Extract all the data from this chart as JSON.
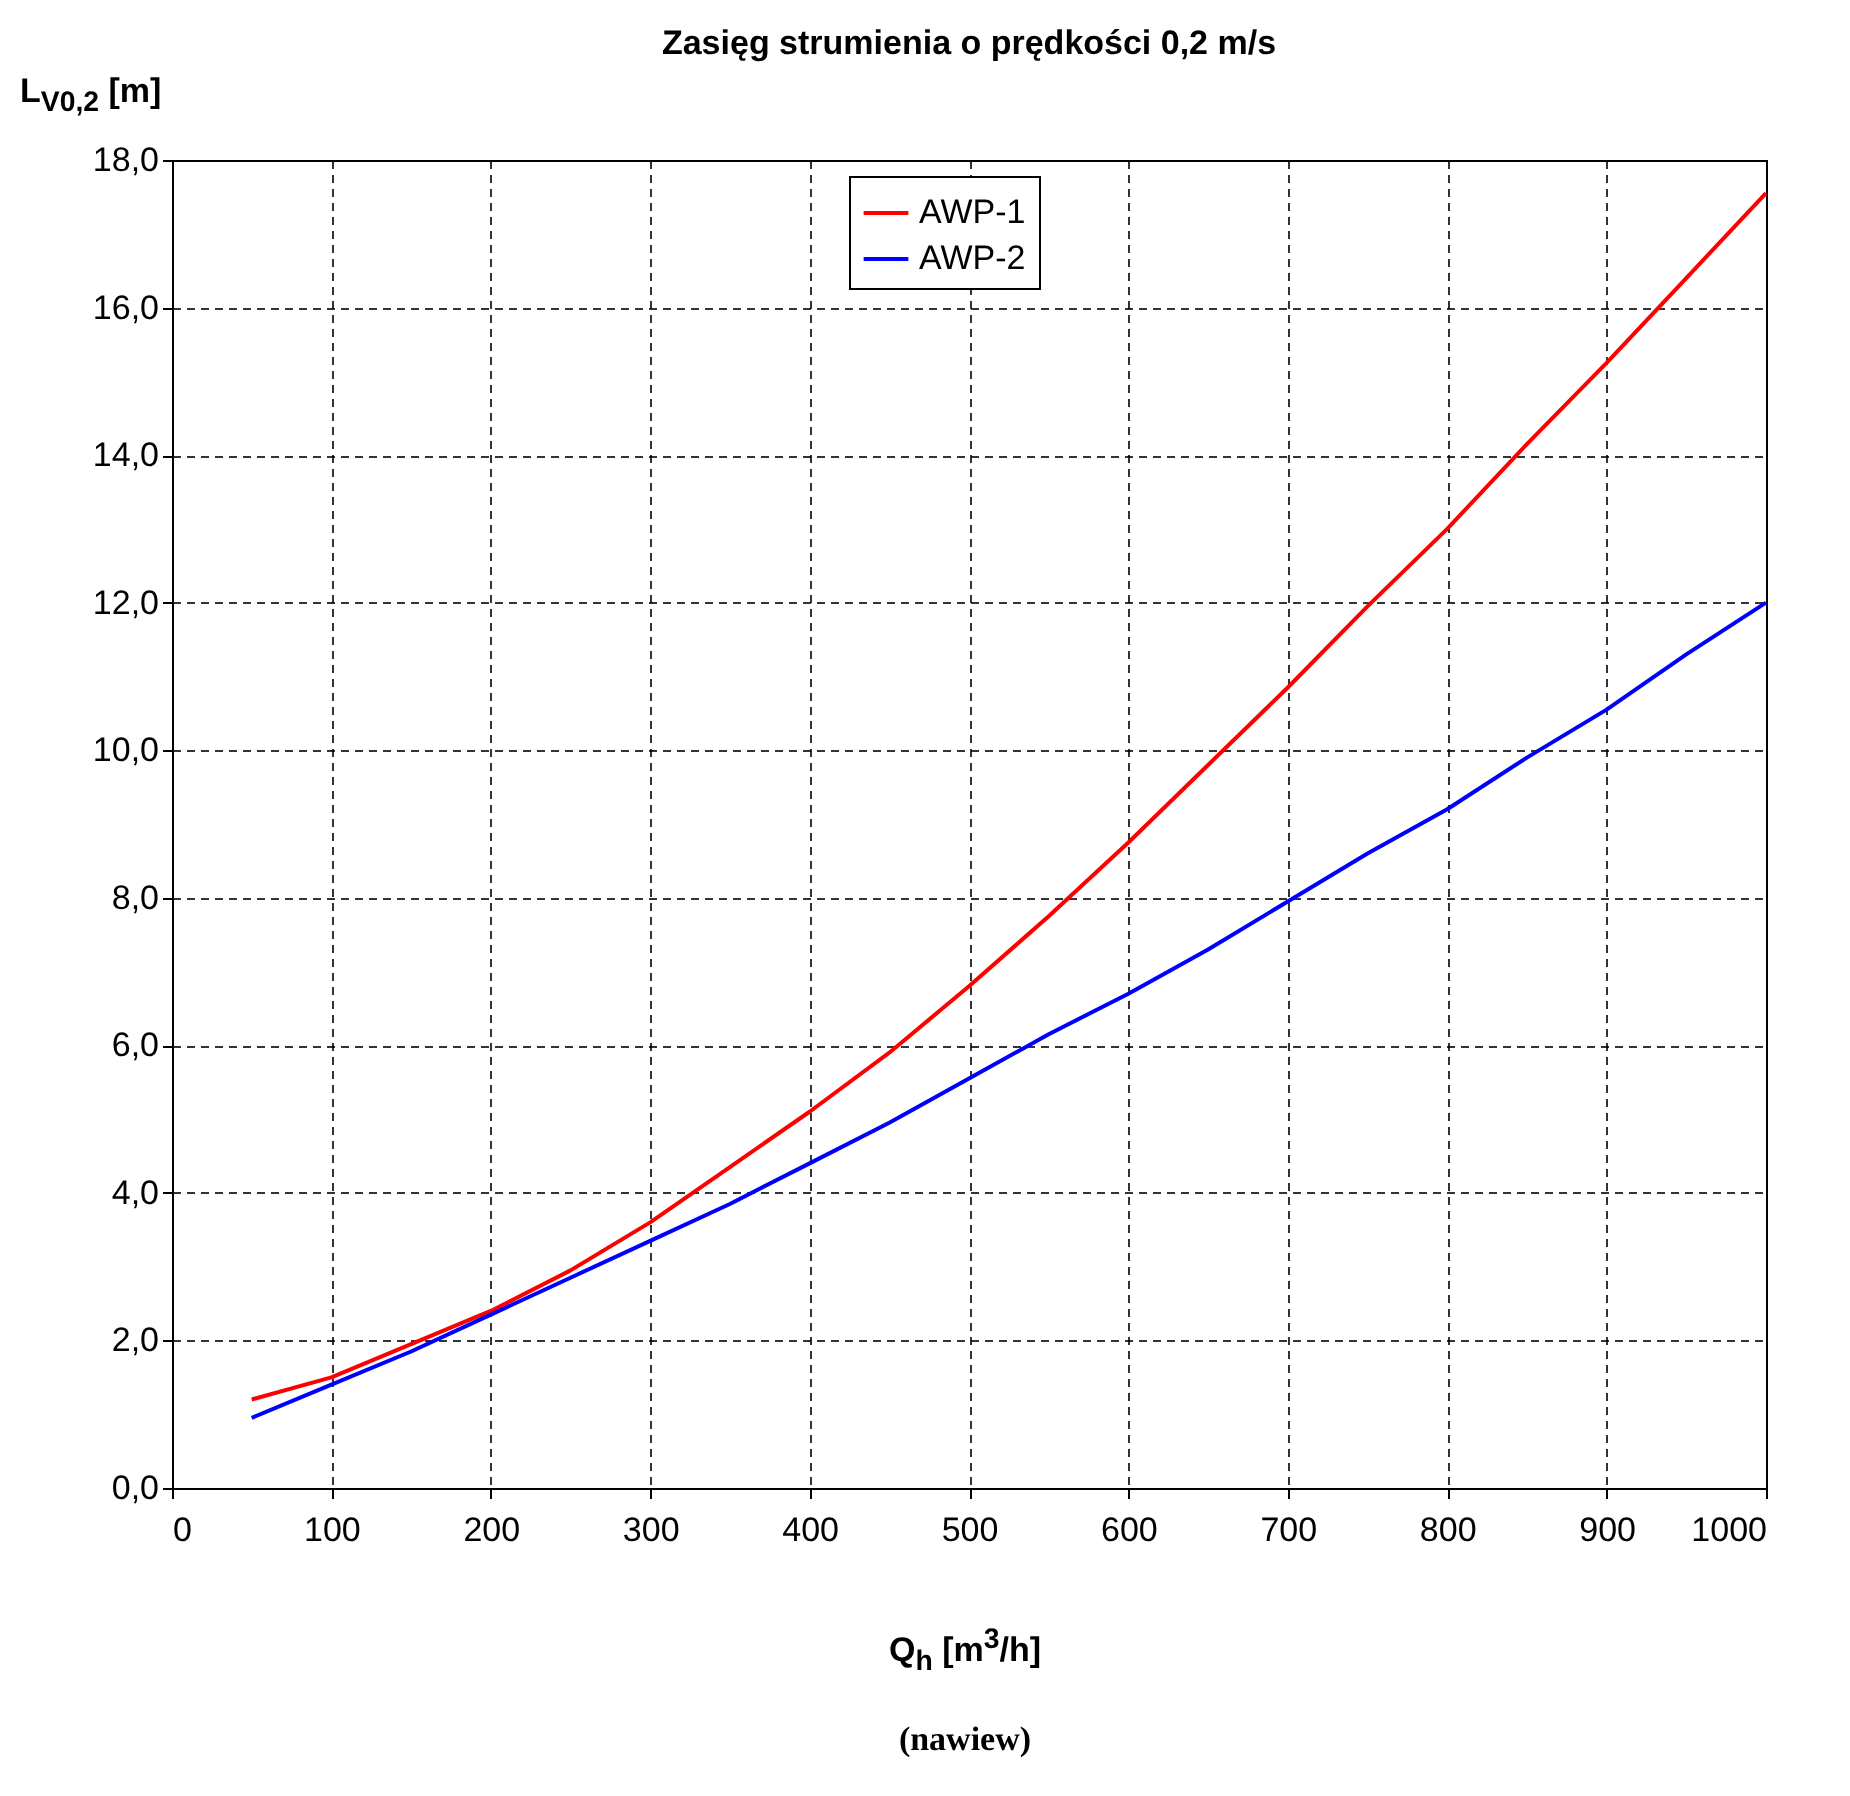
{
  "chart_data": {
    "type": "line",
    "title": "Zasięg strumienia o prędkości 0,2 m/s",
    "ylabel": "L$_{V0,2}$ [m]",
    "xlabel": "Q$_{h}$ [m$^{3}$/h]",
    "annotations": [
      "(nawiew)"
    ],
    "x": [
      50,
      100,
      150,
      200,
      250,
      300,
      350,
      400,
      450,
      500,
      550,
      600,
      650,
      700,
      750,
      800,
      850,
      900,
      950,
      1000
    ],
    "series": [
      {
        "name": "AWP-1",
        "color": "#ff0000",
        "values": [
          1.2,
          1.5,
          1.95,
          2.4,
          2.95,
          3.6,
          4.35,
          5.1,
          5.9,
          6.8,
          7.75,
          8.75,
          9.8,
          10.85,
          11.95,
          13.0,
          14.15,
          15.25,
          16.4,
          17.55
        ]
      },
      {
        "name": "AWP-2",
        "color": "#0000ff",
        "values": [
          0.95,
          1.4,
          1.85,
          2.35,
          2.85,
          3.35,
          3.85,
          4.4,
          4.95,
          5.55,
          6.15,
          6.7,
          7.3,
          7.95,
          8.6,
          9.2,
          9.9,
          10.55,
          11.3,
          12.0
        ]
      }
    ],
    "xlim": [
      0,
      1000
    ],
    "xticks": [
      0,
      100,
      200,
      300,
      400,
      500,
      600,
      700,
      800,
      900,
      1000
    ],
    "ylim": [
      0,
      18
    ],
    "yticks": [
      {
        "value": 0,
        "label": "0,0"
      },
      {
        "value": 2,
        "label": "2,0"
      },
      {
        "value": 4,
        "label": "4,0"
      },
      {
        "value": 6,
        "label": "6,0"
      },
      {
        "value": 8,
        "label": "8,0"
      },
      {
        "value": 10,
        "label": "10,0"
      },
      {
        "value": 12,
        "label": "12,0"
      },
      {
        "value": 14,
        "label": "14,0"
      },
      {
        "value": 16,
        "label": "16,0"
      },
      {
        "value": 18,
        "label": "18,0"
      }
    ],
    "grid": true,
    "legend": "top",
    "marker": "none",
    "line_style": "solid"
  }
}
